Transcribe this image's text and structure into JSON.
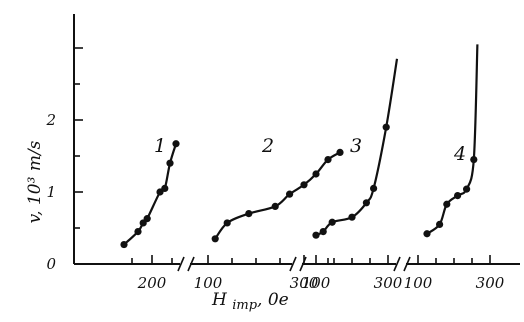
{
  "chart_data": {
    "type": "line",
    "xlabel_main": "H",
    "xlabel_sub": "imp",
    "xlabel_unit": ", 0e",
    "ylabel": "v, 10³ m/s",
    "ylim": [
      0,
      3
    ],
    "yticks": [
      {
        "value": 0,
        "label": "0"
      },
      {
        "value": 1,
        "label": "1"
      },
      {
        "value": 2,
        "label": "2"
      }
    ],
    "segments": [
      {
        "xlim": [
          100,
          280
        ],
        "xticks": [
          {
            "value": 200,
            "label": "200"
          }
        ],
        "minor_xticks": [
          150,
          250
        ],
        "series": [
          {
            "name": "1",
            "x": [
              130,
              165,
              178,
              188,
              220,
              232,
              245,
              260
            ],
            "y": [
              0.27,
              0.45,
              0.57,
              0.63,
              1.0,
              1.05,
              1.4,
              1.67
            ]
          }
        ]
      },
      {
        "xlim": [
          90,
          380
        ],
        "xticks": [
          {
            "value": 100,
            "label": "100"
          },
          {
            "value": 300,
            "label": "300"
          }
        ],
        "minor_xticks": [
          150,
          200,
          250,
          350
        ],
        "series": [
          {
            "name": "2",
            "x": [
              115,
              140,
              185,
              240,
              270,
              300,
              325,
              350,
              375
            ],
            "y": [
              0.35,
              0.57,
              0.7,
              0.8,
              0.97,
              1.1,
              1.25,
              1.45,
              1.55
            ]
          }
        ]
      },
      {
        "xlim": [
          90,
          330
        ],
        "xticks": [
          {
            "value": 100,
            "label": "100"
          },
          {
            "value": 300,
            "label": "300"
          }
        ],
        "minor_xticks": [
          150,
          200,
          250
        ],
        "series": [
          {
            "name": "3",
            "x": [
              100,
              120,
              145,
              200,
              240,
              260,
              295,
              325
            ],
            "y": [
              0.4,
              0.45,
              0.58,
              0.65,
              0.85,
              1.05,
              1.9,
              2.85
            ]
          }
        ]
      },
      {
        "xlim": [
          90,
          320
        ],
        "xticks": [
          {
            "value": 100,
            "label": "100"
          },
          {
            "value": 300,
            "label": "300"
          }
        ],
        "minor_xticks": [
          150,
          200,
          250
        ],
        "series": [
          {
            "name": "4",
            "x": [
              125,
              160,
              180,
              210,
              235,
              255,
              265
            ],
            "y": [
              0.42,
              0.55,
              0.83,
              0.95,
              1.04,
              1.45,
              3.05
            ]
          }
        ]
      }
    ]
  }
}
